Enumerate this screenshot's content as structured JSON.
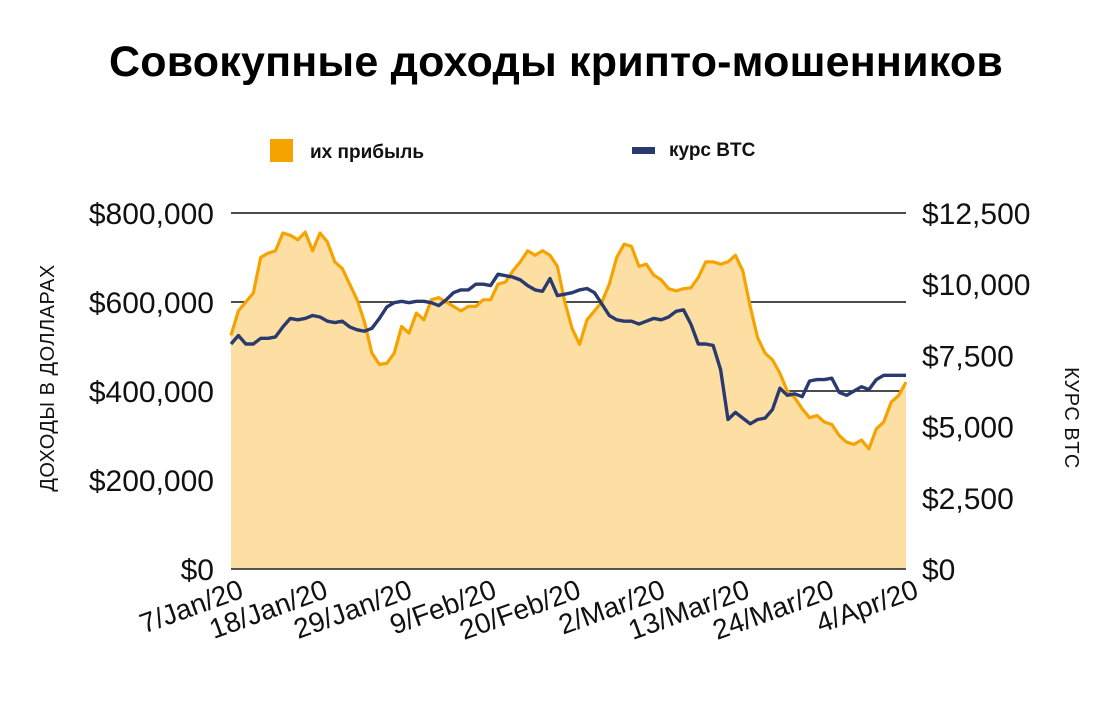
{
  "chart_data": {
    "type": "area+line",
    "title": "Совокупные доходы крипто-мошенников",
    "ylabel_left": "ДОХОДЫ В ДОЛЛАРАХ",
    "ylabel_right": "КУРС BTC",
    "ylim_left": [
      0,
      800000
    ],
    "ylim_right": [
      0,
      12500
    ],
    "yticks_left": [
      "$0",
      "$200,000",
      "$400,000",
      "$600,000",
      "$800,000"
    ],
    "yticks_right": [
      "$0",
      "$2,500",
      "$5,000",
      "$7,500",
      "$10,000",
      "$12,500"
    ],
    "xticks": [
      "7/Jan/20",
      "18/Jan/20",
      "29/Jan/20",
      "9/Feb/20",
      "20/Feb/20",
      "2/Mar/20",
      "13/Mar/20",
      "24/Mar/20",
      "4/Apr/20"
    ],
    "x_start": "2020-01-07",
    "x_end": "2020-04-04",
    "grid": true,
    "legend_position": "top",
    "colors": {
      "profit": "#F5A300",
      "profit_fill": "#FDDFA3",
      "btc": "#2B3A6E",
      "grid": "#111111"
    },
    "series": [
      {
        "name": "их прибыль",
        "kind": "area",
        "axis": "left",
        "values": [
          525000,
          580000,
          600000,
          620000,
          700000,
          710000,
          715000,
          755000,
          750000,
          740000,
          757000,
          715000,
          755000,
          735000,
          690000,
          675000,
          640000,
          605000,
          555000,
          485000,
          460000,
          462000,
          485000,
          545000,
          530000,
          575000,
          560000,
          605000,
          610000,
          600000,
          590000,
          580000,
          590000,
          590000,
          605000,
          605000,
          640000,
          645000,
          670000,
          690000,
          715000,
          705000,
          715000,
          705000,
          680000,
          600000,
          540000,
          505000,
          560000,
          580000,
          600000,
          640000,
          700000,
          730000,
          725000,
          680000,
          685000,
          660000,
          650000,
          630000,
          625000,
          630000,
          632000,
          655000,
          690000,
          690000,
          685000,
          690000,
          705000,
          670000,
          590000,
          520000,
          485000,
          470000,
          440000,
          400000,
          385000,
          360000,
          340000,
          345000,
          330000,
          325000,
          300000,
          285000,
          280000,
          290000,
          270000,
          315000,
          330000,
          375000,
          390000,
          420000
        ]
      },
      {
        "name": "курс BTC",
        "kind": "line",
        "axis": "right",
        "values": [
          7900,
          8200,
          7900,
          7900,
          8100,
          8100,
          8150,
          8500,
          8800,
          8750,
          8800,
          8900,
          8850,
          8700,
          8650,
          8700,
          8500,
          8400,
          8350,
          8450,
          8800,
          9200,
          9350,
          9400,
          9350,
          9400,
          9400,
          9350,
          9250,
          9450,
          9700,
          9800,
          9800,
          10000,
          10000,
          9950,
          10350,
          10300,
          10250,
          10150,
          9950,
          9800,
          9750,
          10200,
          9600,
          9650,
          9700,
          9800,
          9850,
          9700,
          9300,
          8900,
          8750,
          8700,
          8700,
          8600,
          8700,
          8800,
          8750,
          8850,
          9050,
          9100,
          8600,
          7900,
          7900,
          7850,
          7000,
          5250,
          5500,
          5300,
          5100,
          5250,
          5300,
          5600,
          6350,
          6100,
          6150,
          6050,
          6600,
          6650,
          6650,
          6700,
          6200,
          6100,
          6250,
          6400,
          6300,
          6650,
          6800,
          6800,
          6800,
          6800
        ]
      }
    ]
  },
  "legend": {
    "profit_label": "их прибыль",
    "btc_label": "курс BTC"
  }
}
